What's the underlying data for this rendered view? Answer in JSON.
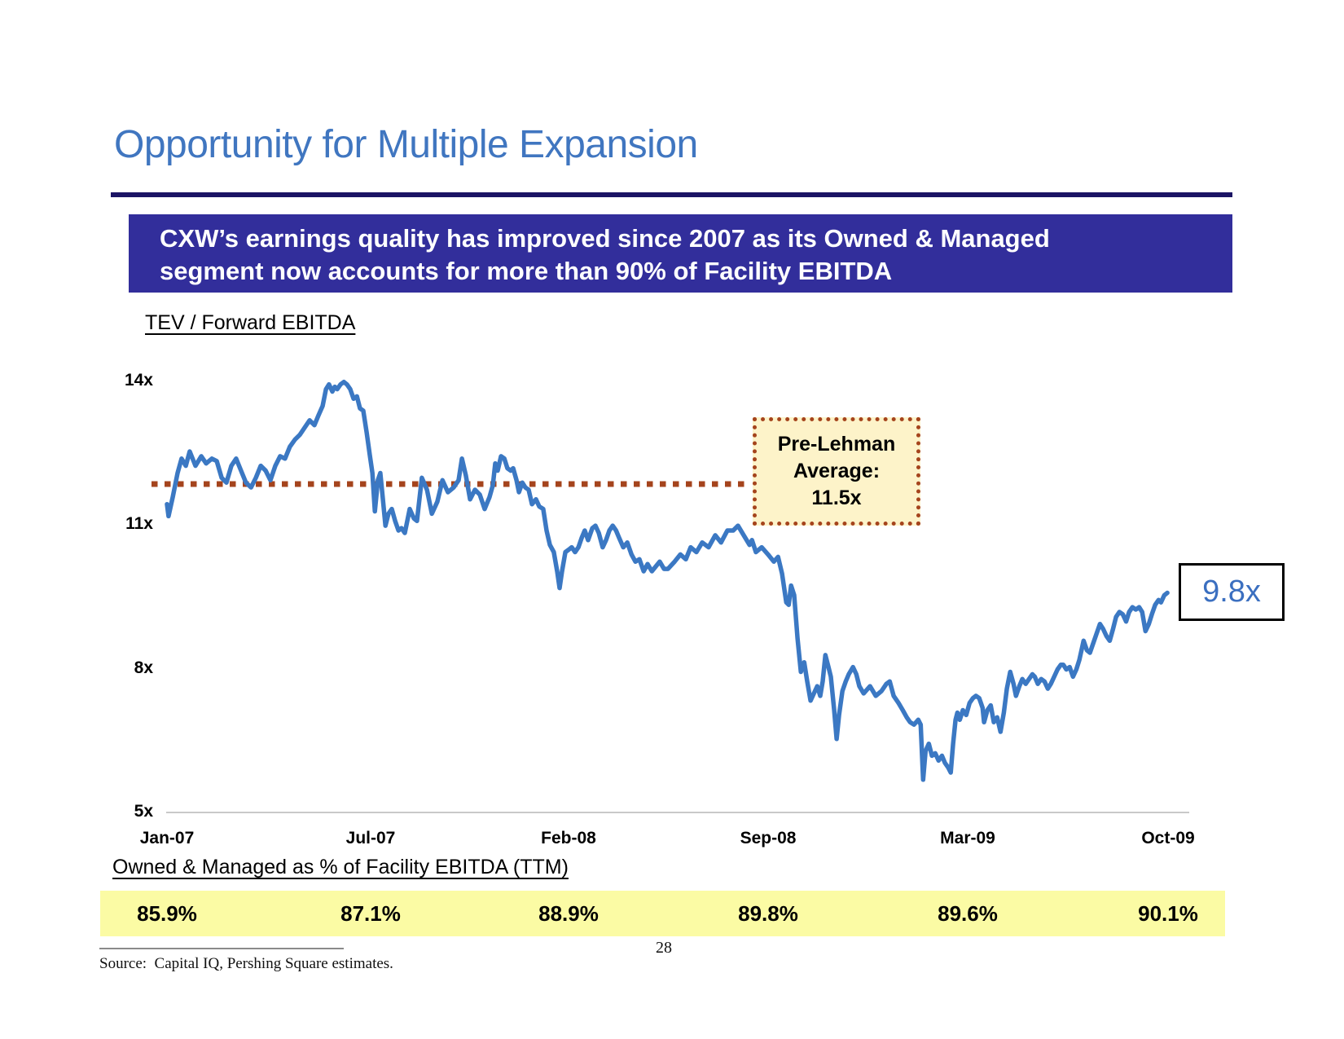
{
  "slide": {
    "title": "Opportunity for Multiple Expansion",
    "banner": {
      "line1": "CXW’s earnings quality has improved since 2007 as its Owned & Managed",
      "line2": "segment now accounts for more than 90% of Facility EBITDA"
    },
    "source": "Source:  Capital IQ, Pershing Square estimates.",
    "page_number": "28"
  },
  "colors": {
    "title": "#4076c0",
    "rule": "#1b1464",
    "banner_bg": "#322e9b",
    "banner_text": "#ffffff",
    "line": "#3b78c3",
    "average": "#a5441d",
    "callout_bg": "#fdf3c9",
    "callout_border": "#a5441d",
    "endpoint_text": "#3b6fc0",
    "band_bg": "#fbfba4",
    "axis": "#c9c9c9"
  },
  "chart_data": {
    "type": "line",
    "title": "TEV / Forward EBITDA",
    "xlabel": "",
    "ylabel": "TEV / Forward EBITDA multiple",
    "ylim": [
      5,
      14
    ],
    "grid": false,
    "legend": "none",
    "y_axis": {
      "ticks": [
        {
          "label": "14x",
          "value": 14
        },
        {
          "label": "11x",
          "value": 11
        },
        {
          "label": "8x",
          "value": 8
        },
        {
          "label": "5x",
          "value": 5
        }
      ]
    },
    "x_axis": {
      "ticks": [
        "Jan-07",
        "Jul-07",
        "Feb-08",
        "Sep-08",
        "Mar-09",
        "Oct-09"
      ],
      "unit": "months from Jan-07",
      "range_months": [
        0,
        33
      ]
    },
    "annotations": {
      "pre_lehman": {
        "lines": [
          "Pre-Lehman",
          "Average:",
          "11.5x"
        ],
        "value": 11.5,
        "style": "dashed-line-with-box"
      },
      "endpoint": {
        "label": "9.8x",
        "value": 9.8
      }
    },
    "series": [
      {
        "name": "CXW TEV / Forward EBITDA",
        "points": [
          [
            0,
            11.4
          ],
          [
            0.05,
            11.15
          ],
          [
            0.19,
            11.55
          ],
          [
            0.35,
            12.05
          ],
          [
            0.48,
            12.35
          ],
          [
            0.62,
            12.2
          ],
          [
            0.75,
            12.5
          ],
          [
            0.94,
            12.2
          ],
          [
            1.13,
            12.4
          ],
          [
            1.29,
            12.25
          ],
          [
            1.48,
            12.35
          ],
          [
            1.64,
            12.3
          ],
          [
            1.8,
            11.95
          ],
          [
            1.96,
            11.85
          ],
          [
            2.12,
            12.2
          ],
          [
            2.28,
            12.35
          ],
          [
            2.44,
            12.1
          ],
          [
            2.6,
            11.85
          ],
          [
            2.77,
            11.75
          ],
          [
            2.93,
            11.95
          ],
          [
            3.09,
            12.2
          ],
          [
            3.25,
            12.1
          ],
          [
            3.41,
            11.9
          ],
          [
            3.57,
            12.2
          ],
          [
            3.73,
            12.4
          ],
          [
            3.89,
            12.35
          ],
          [
            4.05,
            12.6
          ],
          [
            4.22,
            12.75
          ],
          [
            4.38,
            12.85
          ],
          [
            4.54,
            13.0
          ],
          [
            4.7,
            13.15
          ],
          [
            4.86,
            13.05
          ],
          [
            4.99,
            13.25
          ],
          [
            5.13,
            13.45
          ],
          [
            5.24,
            13.8
          ],
          [
            5.34,
            13.9
          ],
          [
            5.45,
            13.75
          ],
          [
            5.53,
            13.85
          ],
          [
            5.61,
            13.8
          ],
          [
            5.72,
            13.9
          ],
          [
            5.83,
            13.95
          ],
          [
            5.93,
            13.9
          ],
          [
            6.04,
            13.8
          ],
          [
            6.15,
            13.6
          ],
          [
            6.26,
            13.65
          ],
          [
            6.36,
            13.4
          ],
          [
            6.47,
            13.35
          ],
          [
            6.58,
            12.9
          ],
          [
            6.69,
            12.4
          ],
          [
            6.77,
            12.05
          ],
          [
            6.85,
            11.25
          ],
          [
            6.95,
            11.9
          ],
          [
            7.03,
            12.05
          ],
          [
            7.11,
            11.55
          ],
          [
            7.2,
            10.95
          ],
          [
            7.3,
            11.2
          ],
          [
            7.41,
            11.3
          ],
          [
            7.52,
            11.05
          ],
          [
            7.63,
            10.85
          ],
          [
            7.73,
            10.9
          ],
          [
            7.84,
            10.8
          ],
          [
            8.0,
            11.3
          ],
          [
            8.14,
            11.1
          ],
          [
            8.24,
            11.05
          ],
          [
            8.4,
            11.95
          ],
          [
            8.57,
            11.7
          ],
          [
            8.73,
            11.2
          ],
          [
            8.91,
            11.45
          ],
          [
            9.08,
            11.9
          ],
          [
            9.26,
            11.65
          ],
          [
            9.45,
            11.75
          ],
          [
            9.61,
            11.9
          ],
          [
            9.72,
            12.35
          ],
          [
            9.85,
            12.0
          ],
          [
            9.99,
            11.5
          ],
          [
            10.15,
            11.7
          ],
          [
            10.31,
            11.6
          ],
          [
            10.47,
            11.3
          ],
          [
            10.63,
            11.55
          ],
          [
            10.74,
            11.8
          ],
          [
            10.82,
            12.25
          ],
          [
            10.9,
            12.1
          ],
          [
            11.01,
            12.4
          ],
          [
            11.12,
            12.35
          ],
          [
            11.22,
            12.15
          ],
          [
            11.33,
            12.1
          ],
          [
            11.41,
            12.15
          ],
          [
            11.52,
            11.9
          ],
          [
            11.6,
            11.65
          ],
          [
            11.71,
            11.85
          ],
          [
            11.81,
            11.75
          ],
          [
            11.92,
            11.7
          ],
          [
            12.03,
            11.4
          ],
          [
            12.16,
            11.5
          ],
          [
            12.27,
            11.35
          ],
          [
            12.4,
            11.3
          ],
          [
            12.51,
            10.85
          ],
          [
            12.62,
            10.55
          ],
          [
            12.75,
            10.4
          ],
          [
            12.86,
            10.0
          ],
          [
            12.94,
            9.65
          ],
          [
            13.02,
            10.0
          ],
          [
            13.13,
            10.4
          ],
          [
            13.24,
            10.45
          ],
          [
            13.34,
            10.5
          ],
          [
            13.45,
            10.4
          ],
          [
            13.56,
            10.5
          ],
          [
            13.67,
            10.7
          ],
          [
            13.77,
            10.85
          ],
          [
            13.88,
            10.65
          ],
          [
            14.02,
            10.9
          ],
          [
            14.12,
            10.95
          ],
          [
            14.23,
            10.8
          ],
          [
            14.36,
            10.5
          ],
          [
            14.47,
            10.65
          ],
          [
            14.58,
            10.85
          ],
          [
            14.69,
            10.95
          ],
          [
            14.8,
            10.85
          ],
          [
            14.9,
            10.7
          ],
          [
            15.04,
            10.5
          ],
          [
            15.17,
            10.6
          ],
          [
            15.31,
            10.35
          ],
          [
            15.44,
            10.2
          ],
          [
            15.57,
            10.25
          ],
          [
            15.71,
            10.0
          ],
          [
            15.84,
            10.15
          ],
          [
            15.98,
            10.0
          ],
          [
            16.11,
            10.1
          ],
          [
            16.24,
            10.2
          ],
          [
            16.38,
            10.05
          ],
          [
            16.51,
            10.05
          ],
          [
            16.73,
            10.2
          ],
          [
            16.92,
            10.35
          ],
          [
            17.1,
            10.25
          ],
          [
            17.26,
            10.5
          ],
          [
            17.45,
            10.4
          ],
          [
            17.64,
            10.6
          ],
          [
            17.85,
            10.5
          ],
          [
            18.07,
            10.75
          ],
          [
            18.26,
            10.6
          ],
          [
            18.47,
            10.85
          ],
          [
            18.66,
            10.85
          ],
          [
            18.82,
            10.95
          ],
          [
            19.01,
            10.75
          ],
          [
            19.2,
            10.55
          ],
          [
            19.28,
            10.65
          ],
          [
            19.41,
            10.4
          ],
          [
            19.6,
            10.5
          ],
          [
            19.81,
            10.35
          ],
          [
            20.0,
            10.2
          ],
          [
            20.14,
            10.3
          ],
          [
            20.27,
            9.95
          ],
          [
            20.41,
            9.35
          ],
          [
            20.49,
            9.3
          ],
          [
            20.57,
            9.7
          ],
          [
            20.67,
            9.5
          ],
          [
            20.78,
            8.6
          ],
          [
            20.89,
            7.9
          ],
          [
            21.0,
            8.1
          ],
          [
            21.1,
            7.7
          ],
          [
            21.21,
            7.3
          ],
          [
            21.32,
            7.45
          ],
          [
            21.43,
            7.6
          ],
          [
            21.53,
            7.4
          ],
          [
            21.61,
            7.7
          ],
          [
            21.7,
            8.25
          ],
          [
            21.8,
            8.0
          ],
          [
            21.88,
            7.8
          ],
          [
            21.99,
            7.1
          ],
          [
            22.07,
            6.5
          ],
          [
            22.15,
            7.0
          ],
          [
            22.26,
            7.5
          ],
          [
            22.37,
            7.7
          ],
          [
            22.47,
            7.85
          ],
          [
            22.61,
            8.0
          ],
          [
            22.72,
            7.85
          ],
          [
            22.82,
            7.6
          ],
          [
            22.96,
            7.45
          ],
          [
            23.17,
            7.6
          ],
          [
            23.36,
            7.4
          ],
          [
            23.55,
            7.5
          ],
          [
            23.71,
            7.65
          ],
          [
            23.82,
            7.7
          ],
          [
            23.95,
            7.4
          ],
          [
            24.11,
            7.25
          ],
          [
            24.25,
            7.1
          ],
          [
            24.38,
            6.95
          ],
          [
            24.49,
            6.85
          ],
          [
            24.62,
            6.8
          ],
          [
            24.76,
            6.9
          ],
          [
            24.84,
            6.8
          ],
          [
            24.92,
            5.65
          ],
          [
            25.0,
            6.25
          ],
          [
            25.11,
            6.4
          ],
          [
            25.21,
            6.15
          ],
          [
            25.32,
            6.2
          ],
          [
            25.43,
            6.05
          ],
          [
            25.54,
            6.15
          ],
          [
            25.64,
            6.0
          ],
          [
            25.75,
            5.9
          ],
          [
            25.83,
            5.8
          ],
          [
            25.91,
            6.4
          ],
          [
            25.99,
            6.9
          ],
          [
            26.05,
            7.05
          ],
          [
            26.13,
            6.9
          ],
          [
            26.23,
            7.1
          ],
          [
            26.34,
            7.0
          ],
          [
            26.45,
            7.25
          ],
          [
            26.56,
            7.35
          ],
          [
            26.66,
            7.4
          ],
          [
            26.77,
            7.35
          ],
          [
            26.88,
            7.15
          ],
          [
            26.93,
            6.85
          ],
          [
            27.04,
            7.1
          ],
          [
            27.15,
            7.2
          ],
          [
            27.25,
            6.85
          ],
          [
            27.36,
            6.95
          ],
          [
            27.47,
            6.65
          ],
          [
            27.58,
            7.05
          ],
          [
            27.68,
            7.55
          ],
          [
            27.79,
            7.9
          ],
          [
            27.9,
            7.65
          ],
          [
            27.98,
            7.4
          ],
          [
            28.09,
            7.6
          ],
          [
            28.19,
            7.75
          ],
          [
            28.3,
            7.65
          ],
          [
            28.41,
            7.75
          ],
          [
            28.52,
            7.85
          ],
          [
            28.6,
            7.8
          ],
          [
            28.7,
            7.65
          ],
          [
            28.81,
            7.75
          ],
          [
            28.92,
            7.7
          ],
          [
            29.03,
            7.55
          ],
          [
            29.13,
            7.65
          ],
          [
            29.24,
            7.8
          ],
          [
            29.35,
            7.95
          ],
          [
            29.46,
            8.05
          ],
          [
            29.54,
            8.05
          ],
          [
            29.64,
            7.95
          ],
          [
            29.75,
            8.0
          ],
          [
            29.86,
            7.8
          ],
          [
            29.97,
            7.95
          ],
          [
            30.07,
            8.15
          ],
          [
            30.21,
            8.55
          ],
          [
            30.32,
            8.35
          ],
          [
            30.42,
            8.3
          ],
          [
            30.53,
            8.5
          ],
          [
            30.64,
            8.7
          ],
          [
            30.75,
            8.9
          ],
          [
            30.85,
            8.8
          ],
          [
            30.96,
            8.65
          ],
          [
            31.07,
            8.55
          ],
          [
            31.18,
            8.8
          ],
          [
            31.28,
            9.05
          ],
          [
            31.39,
            9.15
          ],
          [
            31.5,
            9.1
          ],
          [
            31.61,
            8.95
          ],
          [
            31.71,
            9.15
          ],
          [
            31.82,
            9.25
          ],
          [
            31.93,
            9.2
          ],
          [
            32.04,
            9.25
          ],
          [
            32.14,
            9.15
          ],
          [
            32.25,
            8.75
          ],
          [
            32.36,
            8.9
          ],
          [
            32.46,
            9.1
          ],
          [
            32.57,
            9.3
          ],
          [
            32.68,
            9.4
          ],
          [
            32.76,
            9.35
          ],
          [
            32.87,
            9.5
          ],
          [
            32.97,
            9.55
          ]
        ]
      }
    ]
  },
  "footer": {
    "title": "Owned & Managed as % of Facility EBITDA (TTM)",
    "values": [
      "85.9%",
      "87.1%",
      "88.9%",
      "89.8%",
      "89.6%",
      "90.1%"
    ]
  }
}
